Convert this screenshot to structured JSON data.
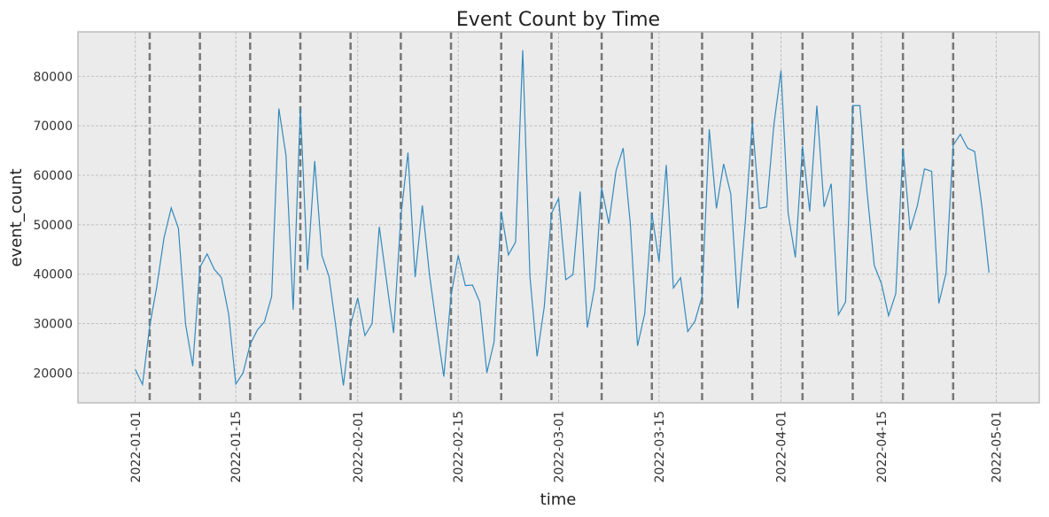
{
  "chart_data": {
    "type": "line",
    "title": "Event Count by Time",
    "xlabel": "time",
    "ylabel": "event_count",
    "x_start": "2022-01-01",
    "xlim": [
      "2021-12-24",
      "2022-05-07"
    ],
    "ylim": [
      14000,
      89000
    ],
    "grid": true,
    "background": "#ebebeb",
    "line_color": "#348abd",
    "vline_color": "#777777",
    "x_ticks": [
      "2022-01-01",
      "2022-01-15",
      "2022-02-01",
      "2022-02-15",
      "2022-03-01",
      "2022-03-15",
      "2022-04-01",
      "2022-04-15",
      "2022-05-01"
    ],
    "y_ticks": [
      20000,
      30000,
      40000,
      50000,
      60000,
      70000,
      80000
    ],
    "y_tick_labels": [
      "20000",
      "30000",
      "40000",
      "50000",
      "60000",
      "70000",
      "80000"
    ],
    "vertical_lines": [
      "2022-01-03",
      "2022-01-10",
      "2022-01-17",
      "2022-01-24",
      "2022-01-31",
      "2022-02-07",
      "2022-02-14",
      "2022-02-21",
      "2022-02-28",
      "2022-03-07",
      "2022-03-14",
      "2022-03-21",
      "2022-03-28",
      "2022-04-04",
      "2022-04-11",
      "2022-04-18",
      "2022-04-25"
    ],
    "series": [
      {
        "values": [
          20700,
          17700,
          29500,
          37600,
          47400,
          53400,
          49300,
          29900,
          21400,
          41400,
          44100,
          41000,
          39300,
          32000,
          17800,
          20000,
          25800,
          28700,
          30400,
          35500,
          73500,
          64000,
          32800,
          73600,
          40800,
          62900,
          43800,
          39500,
          28800,
          17500,
          29800,
          35200,
          27600,
          30000,
          49600,
          38800,
          28100,
          51500,
          64600,
          39400,
          53900,
          39900,
          29300,
          19300,
          35600,
          43800,
          37700,
          37800,
          34400,
          20100,
          26300,
          52700,
          43900,
          46500,
          85300,
          39600,
          23400,
          33400,
          52300,
          55300,
          38900,
          39900,
          56700,
          29200,
          37200,
          57500,
          50200,
          60900,
          65500,
          50100,
          25500,
          32000,
          52300,
          42500,
          62100,
          37200,
          39300,
          28400,
          30500,
          35500,
          69300,
          53300,
          62300,
          56200,
          33100,
          50100,
          70700,
          53300,
          53600,
          70100,
          81200,
          52300,
          43400,
          65900,
          52700,
          74100,
          53600,
          58300,
          31800,
          34400,
          74100,
          74100,
          56600,
          41800,
          38100,
          31600,
          36100,
          65500,
          48900,
          53800,
          61300,
          60800,
          34100,
          40200,
          66100,
          68300,
          65500,
          64800,
          53700,
          40300
        ]
      }
    ]
  }
}
